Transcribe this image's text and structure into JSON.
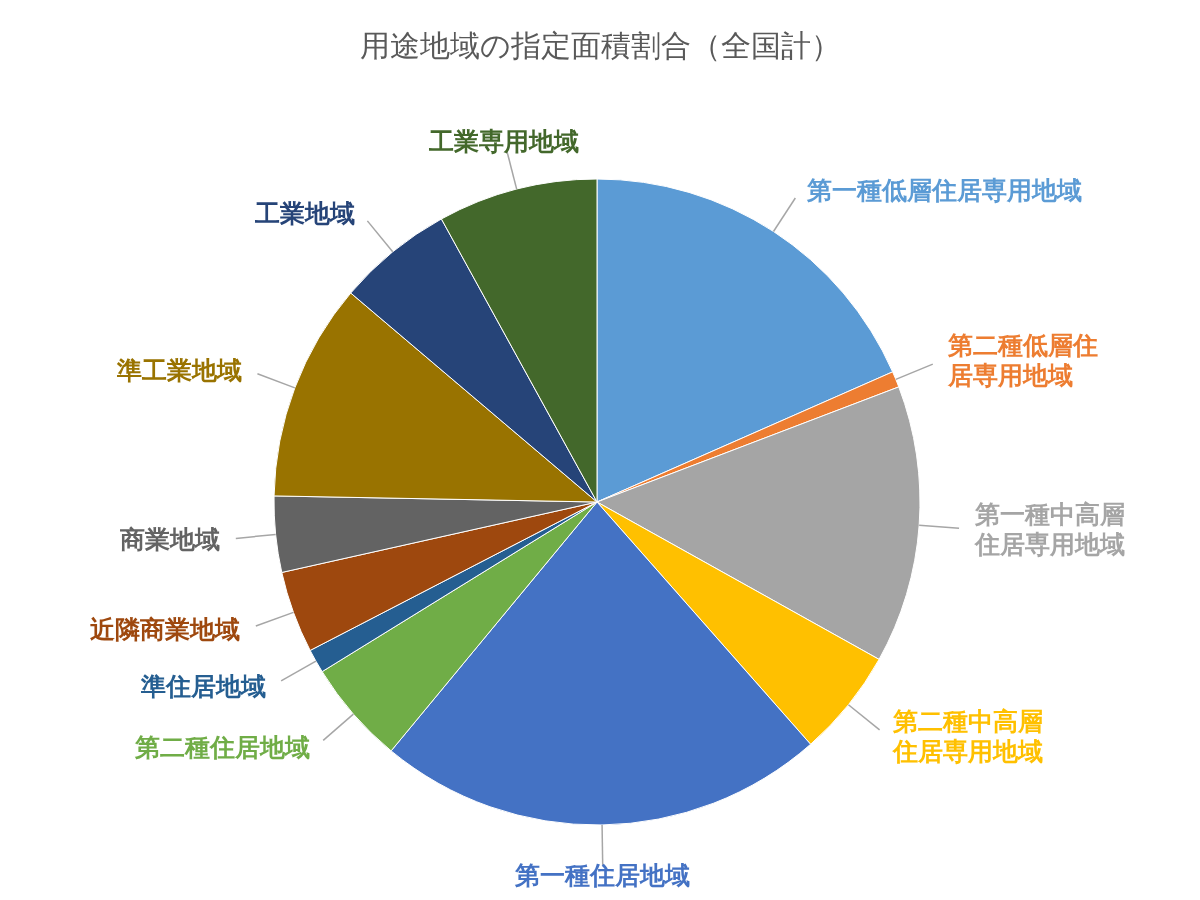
{
  "chart_data": {
    "type": "pie",
    "title": "用途地域の指定面積割合（全国計）",
    "categories": [
      "第一種低層住居専用地域",
      "第二種低層住居専用地域",
      "第一種中高層住居専用地域",
      "第二種中高層住居専用地域",
      "第一種住居地域",
      "第二種住居地域",
      "準住居地域",
      "近隣商業地域",
      "商業地域",
      "準工業地域",
      "工業地域",
      "工業専用地域"
    ],
    "values": [
      18.4,
      0.8,
      13.9,
      5.4,
      22.5,
      5.2,
      1.2,
      4.1,
      3.8,
      10.9,
      5.8,
      8.0
    ],
    "colors": [
      "#5b9bd5",
      "#ed7d31",
      "#a5a5a5",
      "#ffc000",
      "#4472c4",
      "#70ad47",
      "#255e91",
      "#9e480e",
      "#636363",
      "#997300",
      "#264478",
      "#43682b"
    ],
    "legend": false
  }
}
